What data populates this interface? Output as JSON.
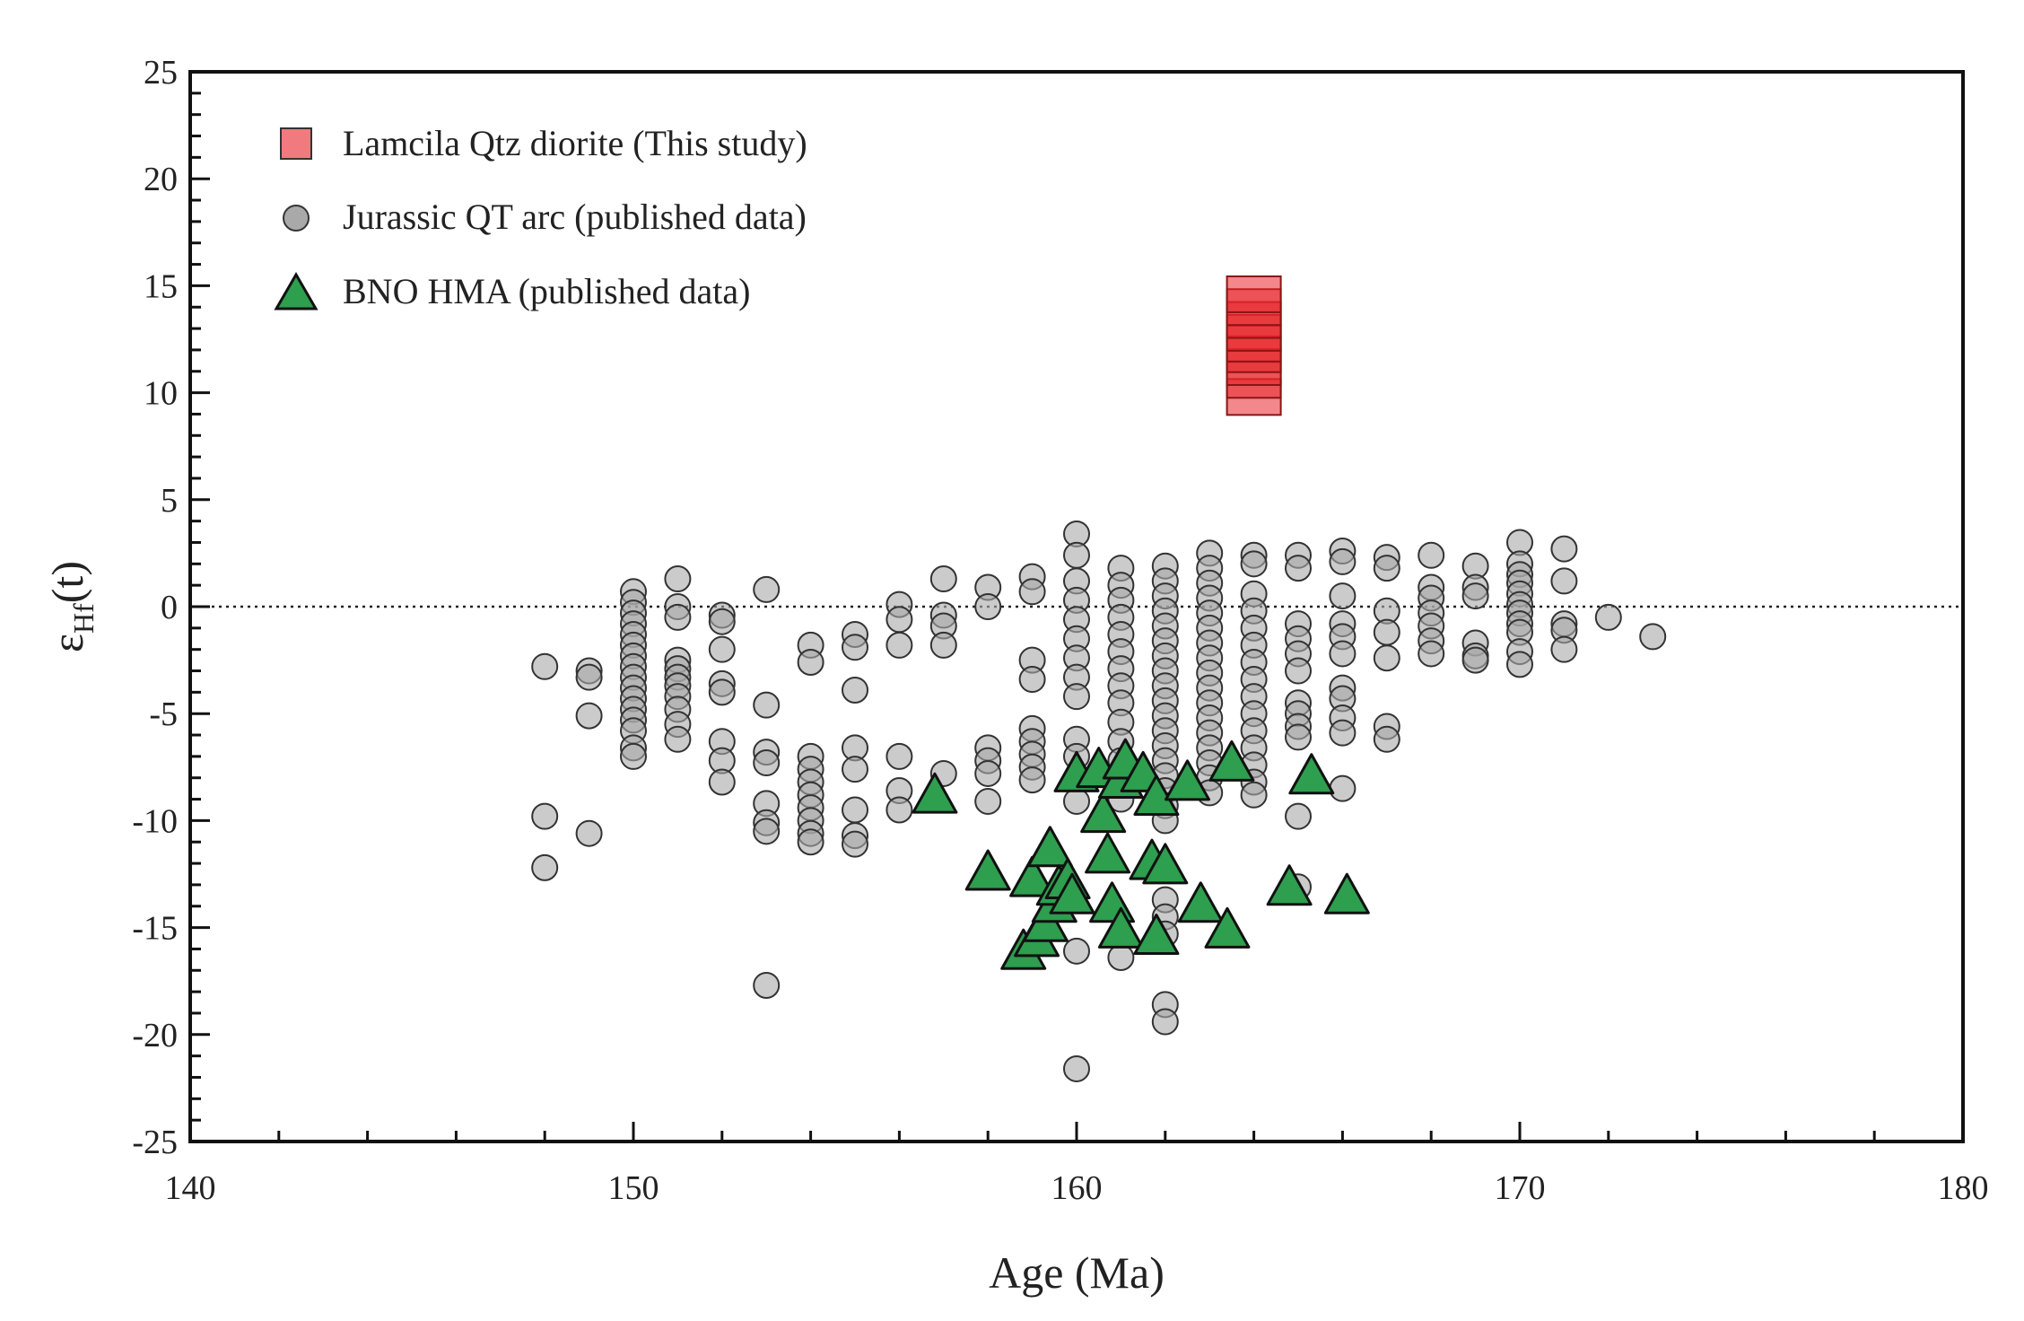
{
  "chart_data": {
    "type": "scatter",
    "title": "",
    "xlabel": "Age (Ma)",
    "ylabel_main": "ε",
    "ylabel_sub": "Hf",
    "ylabel_tail": "(t)",
    "xlim": [
      140,
      180
    ],
    "ylim": [
      -25,
      25
    ],
    "xticks": [
      140,
      150,
      160,
      170,
      180
    ],
    "yticks": [
      25,
      20,
      15,
      10,
      5,
      0,
      -5,
      -10,
      -15,
      -20,
      -25
    ],
    "reference_line_y": 0,
    "legend_position": "top-left",
    "colors": {
      "lamcila_fill": "#e8262b",
      "jurassic_fill": "#a9a9a9",
      "bno_fill": "#2e9e4f",
      "stroke": "#333333"
    },
    "series": [
      {
        "name": "Lamcila Qtz diorite (This study)",
        "marker": "square",
        "columns": [
          {
            "x": 164,
            "y": [
              9.8,
              10.6,
              11.2,
              11.8,
              12.3,
              12.8,
              13.4,
              14.0,
              14.6
            ]
          }
        ]
      },
      {
        "name": "Jurassic QT arc (published data)",
        "marker": "circle",
        "columns": [
          {
            "x": 148,
            "y": [
              -2.8,
              -9.8,
              -12.2
            ]
          },
          {
            "x": 149,
            "y": [
              -3.0,
              -3.3,
              -5.1,
              -10.6
            ]
          },
          {
            "x": 150,
            "y": [
              0.7,
              0.2,
              -0.3,
              -0.8,
              -1.3,
              -1.8,
              -2.3,
              -2.8,
              -3.3,
              -3.8,
              -4.3,
              -4.8,
              -5.3,
              -5.8,
              -6.6,
              -7.0
            ]
          },
          {
            "x": 151,
            "y": [
              1.3,
              0.0,
              -0.5,
              -2.5,
              -2.9,
              -3.3,
              -3.7,
              -4.2,
              -4.8,
              -5.5,
              -6.2
            ]
          },
          {
            "x": 152,
            "y": [
              -0.4,
              -0.7,
              -2.0,
              -3.6,
              -4.0,
              -6.3,
              -7.2,
              -8.2
            ]
          },
          {
            "x": 153,
            "y": [
              0.8,
              -4.6,
              -6.8,
              -7.3,
              -9.2,
              -10.1,
              -10.5,
              -17.7
            ]
          },
          {
            "x": 154,
            "y": [
              -1.8,
              -2.6,
              -7.0,
              -7.6,
              -8.2,
              -8.8,
              -9.4,
              -10.0,
              -10.6,
              -11.0
            ]
          },
          {
            "x": 155,
            "y": [
              -1.3,
              -1.9,
              -3.9,
              -6.6,
              -7.6,
              -9.5,
              -10.7,
              -11.1
            ]
          },
          {
            "x": 156,
            "y": [
              0.1,
              -0.6,
              -1.8,
              -7.0,
              -8.6,
              -9.5
            ]
          },
          {
            "x": 157,
            "y": [
              1.3,
              -0.4,
              -0.9,
              -1.8,
              -7.8
            ]
          },
          {
            "x": 158,
            "y": [
              0.9,
              0.0,
              -6.6,
              -7.2,
              -7.8,
              -9.1
            ]
          },
          {
            "x": 159,
            "y": [
              1.4,
              0.7,
              -2.5,
              -3.4,
              -5.7,
              -6.3,
              -6.9,
              -7.5,
              -8.1
            ]
          },
          {
            "x": 160,
            "y": [
              3.4,
              2.4,
              1.2,
              0.3,
              -0.6,
              -1.5,
              -2.4,
              -3.3,
              -4.2,
              -6.2,
              -7.0,
              -8.0,
              -9.1,
              -16.1,
              -21.6
            ]
          },
          {
            "x": 161,
            "y": [
              1.8,
              1.0,
              0.3,
              -0.5,
              -1.3,
              -2.1,
              -2.9,
              -3.7,
              -4.5,
              -5.4,
              -6.3,
              -7.2,
              -8.1,
              -9.0,
              -16.4
            ]
          },
          {
            "x": 162,
            "y": [
              1.9,
              1.2,
              0.5,
              -0.2,
              -0.9,
              -1.6,
              -2.3,
              -3.0,
              -3.7,
              -4.4,
              -5.1,
              -5.8,
              -6.5,
              -7.2,
              -7.9,
              -8.6,
              -9.3,
              -10.0,
              -13.7,
              -14.5,
              -15.3,
              -18.6,
              -19.4
            ]
          },
          {
            "x": 163,
            "y": [
              2.5,
              1.8,
              1.1,
              0.4,
              -0.3,
              -1.0,
              -1.7,
              -2.4,
              -3.1,
              -3.8,
              -4.5,
              -5.2,
              -5.9,
              -6.6,
              -7.3,
              -8.0,
              -8.7
            ]
          },
          {
            "x": 164,
            "y": [
              2.4,
              2.0,
              0.6,
              -0.2,
              -1.0,
              -1.8,
              -2.6,
              -3.4,
              -4.2,
              -5.0,
              -5.8,
              -6.6,
              -7.4,
              -8.2,
              -8.8
            ]
          },
          {
            "x": 165,
            "y": [
              2.4,
              1.8,
              -0.8,
              -1.5,
              -2.2,
              -3.0,
              -4.5,
              -5.0,
              -5.6,
              -6.1,
              -9.8,
              -13.1
            ]
          },
          {
            "x": 166,
            "y": [
              2.6,
              2.1,
              0.5,
              -0.8,
              -1.4,
              -2.2,
              -3.8,
              -4.3,
              -5.2,
              -5.9,
              -8.5
            ]
          },
          {
            "x": 167,
            "y": [
              2.3,
              1.8,
              -0.2,
              -1.2,
              -2.4,
              -5.6,
              -6.2
            ]
          },
          {
            "x": 168,
            "y": [
              2.4,
              0.9,
              0.4,
              -0.3,
              -0.9,
              -1.6,
              -2.2
            ]
          },
          {
            "x": 169,
            "y": [
              1.9,
              0.9,
              0.5,
              -1.7,
              -2.3,
              -2.5
            ]
          },
          {
            "x": 170,
            "y": [
              3.0,
              2.0,
              1.5,
              1.1,
              0.6,
              0.1,
              -0.3,
              -0.8,
              -1.2,
              -2.1,
              -2.7
            ]
          },
          {
            "x": 171,
            "y": [
              2.7,
              1.2,
              -0.8,
              -1.1,
              -2.0
            ]
          },
          {
            "x": 172,
            "y": [
              -0.5
            ]
          },
          {
            "x": 173,
            "y": [
              -1.4
            ]
          }
        ]
      },
      {
        "name": "BNO HMA (published data)",
        "marker": "triangle",
        "points": [
          [
            156.8,
            -8.9
          ],
          [
            158.0,
            -12.5
          ],
          [
            158.8,
            -16.2
          ],
          [
            159.0,
            -12.8
          ],
          [
            159.1,
            -15.6
          ],
          [
            159.3,
            -14.9
          ],
          [
            159.4,
            -11.4
          ],
          [
            159.5,
            -14.0
          ],
          [
            159.6,
            -13.2
          ],
          [
            159.8,
            -12.9
          ],
          [
            159.9,
            -13.6
          ],
          [
            160.0,
            -7.9
          ],
          [
            160.5,
            -7.7
          ],
          [
            160.6,
            -9.8
          ],
          [
            160.7,
            -11.7
          ],
          [
            160.8,
            -14.0
          ],
          [
            161.0,
            -15.2
          ],
          [
            161.0,
            -8.2
          ],
          [
            161.1,
            -7.3
          ],
          [
            161.5,
            -7.9
          ],
          [
            161.7,
            -12.0
          ],
          [
            161.8,
            -9.0
          ],
          [
            161.8,
            -15.5
          ],
          [
            162.0,
            -12.2
          ],
          [
            162.5,
            -8.3
          ],
          [
            162.8,
            -14.0
          ],
          [
            163.4,
            -15.2
          ],
          [
            163.5,
            -7.4
          ],
          [
            164.8,
            -13.2
          ],
          [
            165.3,
            -8.0
          ],
          [
            166.1,
            -13.6
          ]
        ]
      }
    ]
  }
}
